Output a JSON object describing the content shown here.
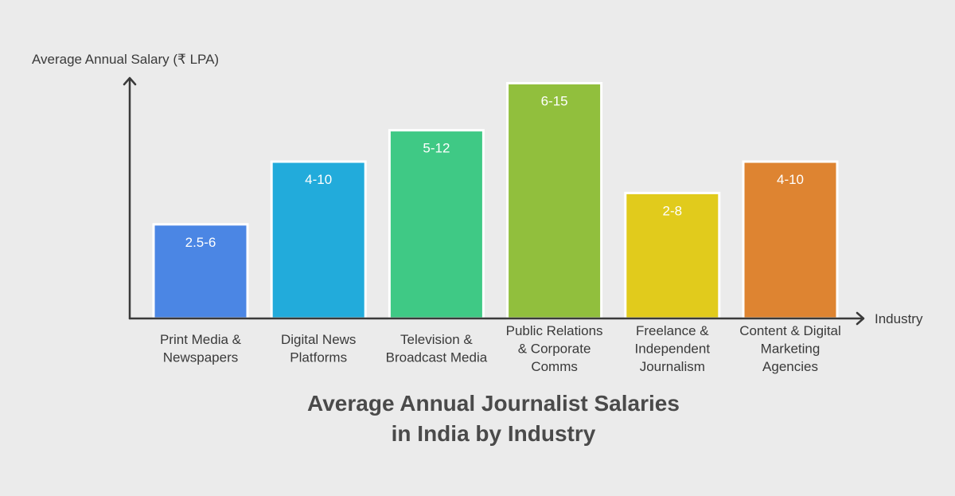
{
  "chart_data": {
    "type": "bar",
    "title": [
      "Average Annual Journalist Salaries",
      "in India by Industry"
    ],
    "xlabel": "Industry",
    "ylabel": "Average Annual Salary (₹ LPA)",
    "grid": false,
    "legend": "none",
    "categories": [
      [
        "Print Media &",
        "Newspapers"
      ],
      [
        "Digital News",
        "Platforms"
      ],
      [
        "Television &",
        "Broadcast Media"
      ],
      [
        "Public Relations",
        "& Corporate",
        "Comms"
      ],
      [
        "Freelance &",
        "Independent",
        "Journalism"
      ],
      [
        "Content & Digital",
        "Marketing",
        "Agencies"
      ]
    ],
    "value_labels": [
      "2.5-6",
      "4-10",
      "5-12",
      "6-15",
      "2-8",
      "4-10"
    ],
    "ranges": [
      [
        2.5,
        6
      ],
      [
        4,
        10
      ],
      [
        5,
        12
      ],
      [
        6,
        15
      ],
      [
        2,
        8
      ],
      [
        4,
        10
      ]
    ],
    "colors": [
      "#4b86e4",
      "#22abdb",
      "#3fc985",
      "#91bf3d",
      "#e1cb1c",
      "#de8431"
    ]
  }
}
